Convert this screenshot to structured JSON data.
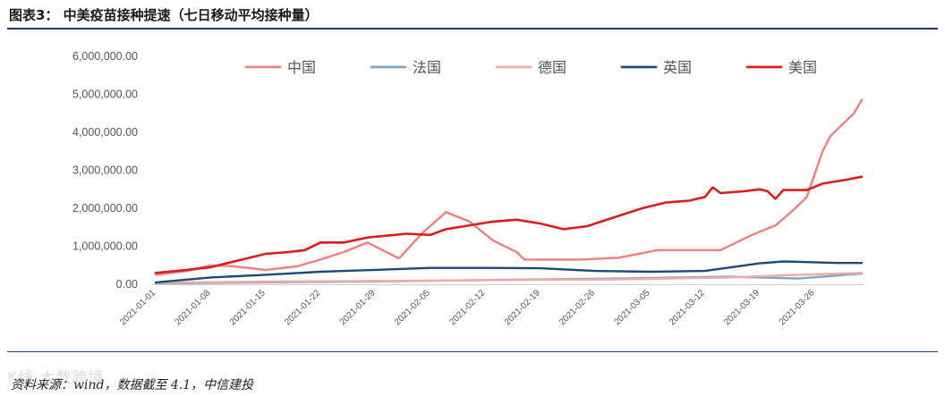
{
  "header": {
    "title": "图表3： 中美疫苗接种提速（七日移动平均接种量）"
  },
  "footer": {
    "source": "资料来源：wind，数据截至 4.1，中信建投",
    "watermark": "K线 大数跨境"
  },
  "chart_data": {
    "type": "line",
    "title": "图表3： 中美疫苗接种提速（七日移动平均接种量）",
    "ylim": [
      0,
      6000000
    ],
    "y_ticks": [
      "6,000,000.00",
      "5,000,000.00",
      "4,000,000.00",
      "3,000,000.00",
      "2,000,000.00",
      "1,000,000.00",
      "0.00"
    ],
    "y_tick_values": [
      6000000,
      5000000,
      4000000,
      3000000,
      2000000,
      1000000,
      0
    ],
    "x_start": "2021-01-01",
    "x_end": "2021-04-01",
    "x_ticks": [
      "2021-01-01",
      "2021-01-08",
      "2021-01-15",
      "2021-01-22",
      "2021-01-29",
      "2021-02-05",
      "2021-02-12",
      "2021-02-19",
      "2021-02-26",
      "2021-03-05",
      "2021-03-12",
      "2021-03-19",
      "2021-03-26"
    ],
    "legend_position": "top",
    "grid": false,
    "series": [
      {
        "name": "中国",
        "color": "#f07f7f",
        "points": [
          [
            "2021-01-01",
            250000
          ],
          [
            "2021-01-05",
            350000
          ],
          [
            "2021-01-08",
            500000
          ],
          [
            "2021-01-11",
            470000
          ],
          [
            "2021-01-15",
            380000
          ],
          [
            "2021-01-19",
            470000
          ],
          [
            "2021-01-22",
            650000
          ],
          [
            "2021-01-25",
            850000
          ],
          [
            "2021-01-28",
            1100000
          ],
          [
            "2021-02-01",
            680000
          ],
          [
            "2021-02-04",
            1350000
          ],
          [
            "2021-02-07",
            1900000
          ],
          [
            "2021-02-10",
            1650000
          ],
          [
            "2021-02-13",
            1150000
          ],
          [
            "2021-02-16",
            850000
          ],
          [
            "2021-02-17",
            650000
          ],
          [
            "2021-02-24",
            650000
          ],
          [
            "2021-03-01",
            700000
          ],
          [
            "2021-03-06",
            900000
          ],
          [
            "2021-03-14",
            900000
          ],
          [
            "2021-03-18",
            1300000
          ],
          [
            "2021-03-21",
            1550000
          ],
          [
            "2021-03-23",
            1900000
          ],
          [
            "2021-03-25",
            2300000
          ],
          [
            "2021-03-27",
            3500000
          ],
          [
            "2021-03-28",
            3900000
          ],
          [
            "2021-03-31",
            4500000
          ],
          [
            "2021-04-01",
            4850000
          ]
        ]
      },
      {
        "name": "法国",
        "color": "#7fa6c6",
        "points": [
          [
            "2021-01-01",
            20000
          ],
          [
            "2021-01-15",
            50000
          ],
          [
            "2021-02-01",
            80000
          ],
          [
            "2021-02-15",
            120000
          ],
          [
            "2021-03-01",
            150000
          ],
          [
            "2021-03-15",
            200000
          ],
          [
            "2021-03-24",
            150000
          ],
          [
            "2021-04-01",
            280000
          ]
        ]
      },
      {
        "name": "德国",
        "color": "#f4a9a9",
        "points": [
          [
            "2021-01-01",
            40000
          ],
          [
            "2021-01-15",
            70000
          ],
          [
            "2021-02-01",
            90000
          ],
          [
            "2021-02-15",
            110000
          ],
          [
            "2021-03-01",
            130000
          ],
          [
            "2021-03-15",
            180000
          ],
          [
            "2021-03-24",
            250000
          ],
          [
            "2021-04-01",
            300000
          ]
        ]
      },
      {
        "name": "英国",
        "color": "#1c4b7a",
        "points": [
          [
            "2021-01-01",
            50000
          ],
          [
            "2021-01-08",
            180000
          ],
          [
            "2021-01-15",
            250000
          ],
          [
            "2021-01-22",
            330000
          ],
          [
            "2021-01-29",
            380000
          ],
          [
            "2021-02-05",
            430000
          ],
          [
            "2021-02-12",
            430000
          ],
          [
            "2021-02-19",
            420000
          ],
          [
            "2021-02-26",
            350000
          ],
          [
            "2021-03-05",
            330000
          ],
          [
            "2021-03-12",
            350000
          ],
          [
            "2021-03-19",
            550000
          ],
          [
            "2021-03-22",
            600000
          ],
          [
            "2021-03-26",
            580000
          ],
          [
            "2021-03-29",
            560000
          ],
          [
            "2021-04-01",
            560000
          ]
        ]
      },
      {
        "name": "美国",
        "color": "#dd1c1c",
        "points": [
          [
            "2021-01-01",
            300000
          ],
          [
            "2021-01-05",
            380000
          ],
          [
            "2021-01-08",
            450000
          ],
          [
            "2021-01-12",
            650000
          ],
          [
            "2021-01-15",
            800000
          ],
          [
            "2021-01-18",
            850000
          ],
          [
            "2021-01-20",
            900000
          ],
          [
            "2021-01-22",
            1100000
          ],
          [
            "2021-01-25",
            1100000
          ],
          [
            "2021-01-28",
            1230000
          ],
          [
            "2021-02-02",
            1330000
          ],
          [
            "2021-02-05",
            1300000
          ],
          [
            "2021-02-07",
            1450000
          ],
          [
            "2021-02-10",
            1550000
          ],
          [
            "2021-02-13",
            1650000
          ],
          [
            "2021-02-16",
            1700000
          ],
          [
            "2021-02-19",
            1600000
          ],
          [
            "2021-02-22",
            1450000
          ],
          [
            "2021-02-25",
            1530000
          ],
          [
            "2021-03-01",
            1800000
          ],
          [
            "2021-03-04",
            2000000
          ],
          [
            "2021-03-07",
            2150000
          ],
          [
            "2021-03-10",
            2200000
          ],
          [
            "2021-03-12",
            2300000
          ],
          [
            "2021-03-13",
            2550000
          ],
          [
            "2021-03-14",
            2400000
          ],
          [
            "2021-03-17",
            2450000
          ],
          [
            "2021-03-19",
            2500000
          ],
          [
            "2021-03-20",
            2450000
          ],
          [
            "2021-03-21",
            2250000
          ],
          [
            "2021-03-22",
            2480000
          ],
          [
            "2021-03-25",
            2480000
          ],
          [
            "2021-03-27",
            2650000
          ],
          [
            "2021-03-30",
            2750000
          ],
          [
            "2021-04-01",
            2830000
          ]
        ]
      }
    ]
  }
}
